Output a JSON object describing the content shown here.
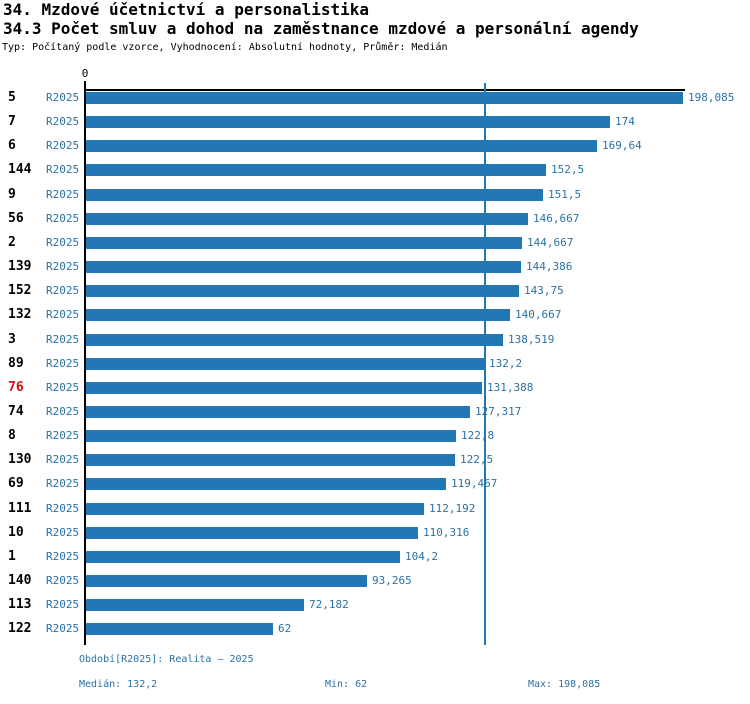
{
  "header": {
    "title1": "34. Mzdové účetnictví a personalistika",
    "title2": "34.3 Počet smluv a dohod na zaměstnance mzdové a personální agendy",
    "subtitle": "Typ: Počítaný podle vzorce, Vyhodnocení: Absolutní hodnoty, Průměr: Medián"
  },
  "chart_data": {
    "type": "bar",
    "orientation": "horizontal",
    "title": "34.3 Počet smluv a dohod na zaměstnance mzdové a personální agendy",
    "series_name": "R2025",
    "axis_zero_label": "0",
    "categories": [
      "5",
      "7",
      "6",
      "144",
      "9",
      "56",
      "2",
      "139",
      "152",
      "132",
      "3",
      "89",
      "76",
      "74",
      "8",
      "130",
      "69",
      "111",
      "10",
      "1",
      "140",
      "113",
      "122"
    ],
    "values": [
      198.085,
      174,
      169.64,
      152.5,
      151.5,
      146.667,
      144.667,
      144.386,
      143.75,
      140.667,
      138.519,
      132.2,
      131.388,
      127.317,
      122.8,
      122.5,
      119.467,
      112.192,
      110.316,
      104.2,
      93.265,
      72.182,
      62
    ],
    "value_labels": [
      "198,085",
      "174",
      "169,64",
      "152,5",
      "151,5",
      "146,667",
      "144,667",
      "144,386",
      "143,75",
      "140,667",
      "138,519",
      "132,2",
      "131,388",
      "127,317",
      "122,8",
      "122,5",
      "119,467",
      "112,192",
      "110,316",
      "104,2",
      "93,265",
      "72,182",
      "62"
    ],
    "highlight_index": 12,
    "highlighted_category": "76",
    "xlim": [
      0,
      198.085
    ],
    "median": 132.2,
    "min": 62,
    "max": 198.085,
    "grid": false,
    "legend_position": "none",
    "colors": {
      "bar": "#2278b5",
      "blue_text": "#2a72a6",
      "highlight": "#cc1111",
      "axis": "#000000"
    }
  },
  "footer": {
    "period_label": "Období[R2025]: Realita – 2025",
    "median_label": "Medián: 132,2",
    "min_label": "Min: 62",
    "max_label": "Max: 198,085"
  }
}
